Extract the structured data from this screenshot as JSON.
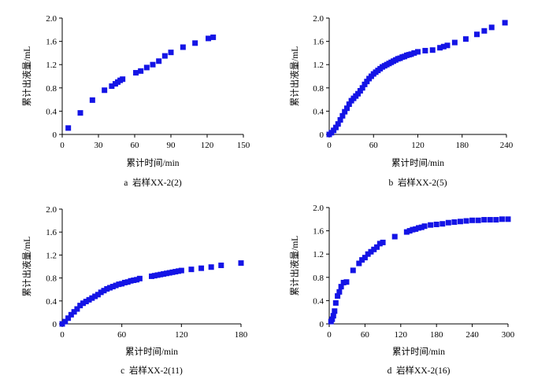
{
  "figure": {
    "marker_color": "#1414e6",
    "axis_color": "#000000"
  },
  "chart_data": [
    {
      "type": "scatter",
      "panel": "a",
      "caption": "a  岩样XX-2(2)",
      "xlabel": "累计时间/min",
      "ylabel": "累计出液量/mL",
      "xlim": [
        0,
        150
      ],
      "ylim": [
        0,
        2.0
      ],
      "xticks": [
        0,
        30,
        60,
        90,
        120,
        150
      ],
      "yticks": [
        0,
        0.4,
        0.8,
        1.2,
        1.6,
        2.0
      ],
      "xtick_labels": [
        "0",
        "30",
        "60",
        "90",
        "120",
        "150"
      ],
      "ytick_labels": [
        "0",
        "0.4",
        "0.8",
        "1.2",
        "1.6",
        "2.0"
      ],
      "x": [
        5,
        15,
        25,
        35,
        41,
        44,
        46,
        48,
        50,
        61,
        65,
        70,
        75,
        80,
        85,
        90,
        100,
        110,
        121,
        125
      ],
      "y": [
        0.11,
        0.37,
        0.59,
        0.76,
        0.83,
        0.87,
        0.9,
        0.93,
        0.95,
        1.06,
        1.09,
        1.15,
        1.2,
        1.26,
        1.35,
        1.41,
        1.5,
        1.57,
        1.65,
        1.67
      ]
    },
    {
      "type": "scatter",
      "panel": "b",
      "caption": "b  岩样XX-2(5)",
      "xlabel": "累计时间/min",
      "ylabel": "累计出液量/mL",
      "xlim": [
        0,
        240
      ],
      "ylim": [
        0,
        2.0
      ],
      "xticks": [
        0,
        60,
        120,
        180,
        240
      ],
      "yticks": [
        0,
        0.4,
        0.8,
        1.2,
        1.6,
        2.0
      ],
      "xtick_labels": [
        "0",
        "60",
        "120",
        "180",
        "240"
      ],
      "ytick_labels": [
        "0",
        "0.4",
        "0.8",
        "1.2",
        "1.6",
        "2.0"
      ],
      "x": [
        0,
        3,
        6,
        9,
        12,
        15,
        18,
        21,
        24,
        27,
        30,
        33,
        36,
        39,
        42,
        45,
        48,
        51,
        54,
        57,
        60,
        63,
        66,
        69,
        72,
        75,
        78,
        81,
        84,
        87,
        90,
        93,
        96,
        99,
        102,
        105,
        108,
        111,
        115,
        120,
        130,
        140,
        150,
        155,
        160,
        170,
        185,
        200,
        210,
        220,
        238
      ],
      "y": [
        0,
        0.03,
        0.07,
        0.12,
        0.18,
        0.25,
        0.32,
        0.39,
        0.45,
        0.52,
        0.58,
        0.62,
        0.66,
        0.7,
        0.75,
        0.8,
        0.86,
        0.91,
        0.96,
        1.0,
        1.04,
        1.07,
        1.1,
        1.13,
        1.16,
        1.18,
        1.2,
        1.22,
        1.24,
        1.26,
        1.28,
        1.3,
        1.31,
        1.33,
        1.34,
        1.36,
        1.37,
        1.38,
        1.4,
        1.42,
        1.44,
        1.45,
        1.49,
        1.51,
        1.53,
        1.58,
        1.64,
        1.72,
        1.78,
        1.84,
        1.92
      ]
    },
    {
      "type": "scatter",
      "panel": "c",
      "caption": "c  岩样XX-2(11)",
      "xlabel": "累计时间/min",
      "ylabel": "累计出液量/mL",
      "xlim": [
        0,
        180
      ],
      "ylim": [
        0,
        2.0
      ],
      "xticks": [
        0,
        60,
        120,
        180
      ],
      "yticks": [
        0,
        0.4,
        0.8,
        1.2,
        1.6,
        2.0
      ],
      "xtick_labels": [
        "0",
        "60",
        "120",
        "180"
      ],
      "ytick_labels": [
        "0",
        "0.4",
        "0.8",
        "1.2",
        "1.6",
        "2.0"
      ],
      "x": [
        0,
        3,
        6,
        9,
        12,
        15,
        18,
        21,
        24,
        27,
        30,
        33,
        36,
        39,
        42,
        45,
        48,
        51,
        54,
        57,
        60,
        63,
        66,
        69,
        72,
        75,
        78,
        90,
        93,
        96,
        99,
        102,
        105,
        108,
        111,
        114,
        117,
        120,
        130,
        140,
        150,
        160,
        180
      ],
      "y": [
        0,
        0.04,
        0.1,
        0.16,
        0.21,
        0.26,
        0.32,
        0.36,
        0.39,
        0.42,
        0.45,
        0.48,
        0.51,
        0.55,
        0.58,
        0.61,
        0.63,
        0.65,
        0.67,
        0.69,
        0.7,
        0.72,
        0.73,
        0.75,
        0.76,
        0.77,
        0.79,
        0.83,
        0.84,
        0.85,
        0.86,
        0.87,
        0.88,
        0.89,
        0.9,
        0.91,
        0.92,
        0.93,
        0.95,
        0.97,
        0.99,
        1.02,
        1.06
      ]
    },
    {
      "type": "scatter",
      "panel": "d",
      "caption": "d  岩样XX-2(16)",
      "xlabel": "累计时间/min",
      "ylabel": "累计出液量/mL",
      "xlim": [
        0,
        300
      ],
      "ylim": [
        0,
        2.0
      ],
      "xticks": [
        0,
        60,
        120,
        180,
        240,
        300
      ],
      "yticks": [
        0,
        0.4,
        0.8,
        1.2,
        1.6,
        2.0
      ],
      "xtick_labels": [
        "0",
        "60",
        "120",
        "180",
        "240",
        "300"
      ],
      "ytick_labels": [
        "0",
        "0.4",
        "0.8",
        "1.2",
        "1.6",
        "2.0"
      ],
      "x": [
        3,
        5,
        7,
        9,
        11,
        14,
        17,
        20,
        24,
        29,
        40,
        50,
        55,
        60,
        65,
        70,
        75,
        80,
        85,
        90,
        110,
        130,
        135,
        140,
        145,
        150,
        155,
        160,
        170,
        180,
        190,
        200,
        210,
        220,
        230,
        240,
        250,
        260,
        270,
        280,
        290,
        300
      ],
      "y": [
        0.04,
        0.08,
        0.14,
        0.22,
        0.36,
        0.48,
        0.55,
        0.64,
        0.71,
        0.72,
        0.92,
        1.04,
        1.1,
        1.14,
        1.2,
        1.24,
        1.28,
        1.32,
        1.38,
        1.4,
        1.5,
        1.58,
        1.6,
        1.62,
        1.63,
        1.65,
        1.66,
        1.68,
        1.7,
        1.71,
        1.72,
        1.74,
        1.75,
        1.76,
        1.77,
        1.78,
        1.78,
        1.79,
        1.79,
        1.79,
        1.8,
        1.8
      ]
    }
  ]
}
